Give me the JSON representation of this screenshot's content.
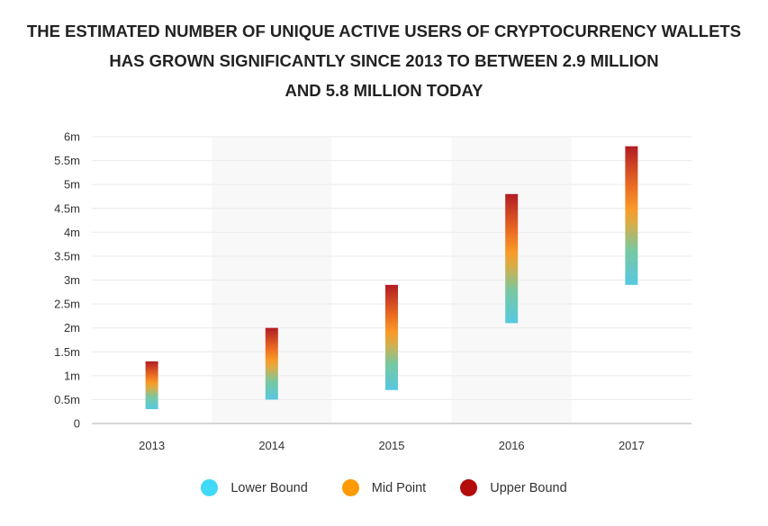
{
  "chart_data": {
    "type": "floating-bar",
    "title_lines": [
      "THE ESTIMATED NUMBER OF UNIQUE ACTIVE USERS OF CRYPTOCURRENCY WALLETS",
      "HAS GROWN SIGNIFICANTLY SINCE 2013 TO BETWEEN 2.9 MILLION",
      "AND 5.8 MILLION TODAY"
    ],
    "categories": [
      "2013",
      "2014",
      "2015",
      "2016",
      "2017"
    ],
    "series": [
      {
        "name": "Lower Bound",
        "values": [
          0.3,
          0.5,
          0.7,
          2.1,
          2.9
        ],
        "color": "#40d9f7"
      },
      {
        "name": "Mid Point",
        "values": [
          0.8,
          1.25,
          1.8,
          3.45,
          4.35
        ],
        "color": "#fd9a05"
      },
      {
        "name": "Upper Bound",
        "values": [
          1.3,
          2.0,
          2.9,
          4.8,
          5.8
        ],
        "color": "#b30c0c"
      }
    ],
    "ylim": [
      0,
      6
    ],
    "yticks": [
      0,
      0.5,
      1,
      1.5,
      2,
      2.5,
      3,
      3.5,
      4,
      4.5,
      5,
      5.5,
      6
    ],
    "ytick_labels": [
      "0",
      "0.5m",
      "1m",
      "1.5m",
      "2m",
      "2.5m",
      "3m",
      "3.5m",
      "4m",
      "4.5m",
      "5m",
      "5.5m",
      "6m"
    ],
    "grid": true,
    "legend_position": "bottom"
  }
}
